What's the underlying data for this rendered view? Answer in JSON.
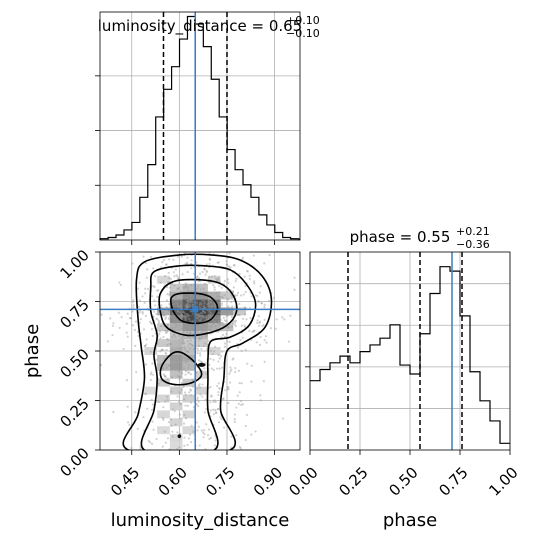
{
  "chart_data": [
    {
      "panel": "luminosity_distance-marginal",
      "type": "bar",
      "title_param": "luminosity_distance",
      "title_value": "0.65",
      "title_plus": "+0.10",
      "title_minus": "−0.10",
      "xlim": [
        0.35,
        0.98
      ],
      "x": [
        0.363,
        0.388,
        0.413,
        0.438,
        0.463,
        0.488,
        0.513,
        0.538,
        0.563,
        0.588,
        0.613,
        0.638,
        0.663,
        0.688,
        0.713,
        0.738,
        0.763,
        0.788,
        0.813,
        0.838,
        0.863,
        0.888,
        0.913,
        0.938,
        0.963
      ],
      "values": [
        1,
        2,
        4,
        8,
        14,
        34,
        60,
        98,
        120,
        138,
        160,
        178,
        172,
        154,
        128,
        98,
        72,
        56,
        44,
        34,
        20,
        12,
        6,
        2,
        1
      ],
      "quantiles": [
        0.55,
        0.65,
        0.75
      ],
      "truth": 0.65,
      "grid": true
    },
    {
      "panel": "phase-marginal",
      "type": "bar",
      "title_param": "phase",
      "title_value": "0.55",
      "title_plus": "+0.21",
      "title_minus": "−0.36",
      "xlim": [
        0.0,
        1.0
      ],
      "xticks": [
        "0.00",
        "0.25",
        "0.50",
        "0.75",
        "1.00"
      ],
      "xlabel": "phase",
      "x": [
        0.025,
        0.075,
        0.125,
        0.175,
        0.225,
        0.275,
        0.325,
        0.375,
        0.425,
        0.475,
        0.525,
        0.575,
        0.625,
        0.675,
        0.725,
        0.775,
        0.825,
        0.875,
        0.925,
        0.975
      ],
      "values": [
        31,
        36,
        39,
        42,
        39,
        44,
        47,
        50,
        56,
        38,
        34,
        52,
        70,
        82,
        80,
        60,
        35,
        22,
        13,
        3
      ],
      "quantiles": [
        0.19,
        0.55,
        0.76
      ],
      "truth": 0.71,
      "grid": true
    },
    {
      "panel": "joint-luminosity_distance-phase",
      "type": "scatter",
      "xlim": [
        0.35,
        0.98
      ],
      "ylim": [
        0.0,
        1.0
      ],
      "xticks": [
        "0.45",
        "0.60",
        "0.75",
        "0.90"
      ],
      "yticks": [
        "0.00",
        "0.25",
        "0.50",
        "0.75",
        "1.00"
      ],
      "xlabel": "luminosity_distance",
      "ylabel": "phase",
      "truth": [
        0.65,
        0.71
      ],
      "density_cells": [
        {
          "x": 0.63,
          "y": 0.7,
          "v": 1.0
        },
        {
          "x": 0.67,
          "y": 0.7,
          "v": 0.95
        },
        {
          "x": 0.63,
          "y": 0.66,
          "v": 0.9
        },
        {
          "x": 0.67,
          "y": 0.74,
          "v": 0.85
        },
        {
          "x": 0.71,
          "y": 0.7,
          "v": 0.8
        },
        {
          "x": 0.59,
          "y": 0.7,
          "v": 0.75
        },
        {
          "x": 0.63,
          "y": 0.74,
          "v": 0.8
        },
        {
          "x": 0.67,
          "y": 0.66,
          "v": 0.8
        },
        {
          "x": 0.59,
          "y": 0.74,
          "v": 0.6
        },
        {
          "x": 0.71,
          "y": 0.74,
          "v": 0.65
        },
        {
          "x": 0.71,
          "y": 0.66,
          "v": 0.6
        },
        {
          "x": 0.59,
          "y": 0.66,
          "v": 0.55
        },
        {
          "x": 0.63,
          "y": 0.78,
          "v": 0.55
        },
        {
          "x": 0.67,
          "y": 0.78,
          "v": 0.5
        },
        {
          "x": 0.63,
          "y": 0.62,
          "v": 0.5
        },
        {
          "x": 0.67,
          "y": 0.62,
          "v": 0.45
        },
        {
          "x": 0.75,
          "y": 0.7,
          "v": 0.45
        },
        {
          "x": 0.55,
          "y": 0.7,
          "v": 0.35
        },
        {
          "x": 0.59,
          "y": 0.78,
          "v": 0.35
        },
        {
          "x": 0.71,
          "y": 0.78,
          "v": 0.35
        },
        {
          "x": 0.59,
          "y": 0.62,
          "v": 0.35
        },
        {
          "x": 0.71,
          "y": 0.62,
          "v": 0.35
        },
        {
          "x": 0.63,
          "y": 0.58,
          "v": 0.3
        },
        {
          "x": 0.59,
          "y": 0.54,
          "v": 0.3
        },
        {
          "x": 0.59,
          "y": 0.46,
          "v": 0.45
        },
        {
          "x": 0.63,
          "y": 0.46,
          "v": 0.35
        },
        {
          "x": 0.59,
          "y": 0.42,
          "v": 0.45
        },
        {
          "x": 0.59,
          "y": 0.5,
          "v": 0.35
        },
        {
          "x": 0.63,
          "y": 0.42,
          "v": 0.3
        },
        {
          "x": 0.55,
          "y": 0.42,
          "v": 0.3
        },
        {
          "x": 0.55,
          "y": 0.46,
          "v": 0.25
        },
        {
          "x": 0.63,
          "y": 0.5,
          "v": 0.25
        },
        {
          "x": 0.59,
          "y": 0.38,
          "v": 0.25
        },
        {
          "x": 0.63,
          "y": 0.54,
          "v": 0.2
        },
        {
          "x": 0.55,
          "y": 0.54,
          "v": 0.2
        },
        {
          "x": 0.67,
          "y": 0.54,
          "v": 0.2
        },
        {
          "x": 0.55,
          "y": 0.62,
          "v": 0.2
        },
        {
          "x": 0.75,
          "y": 0.62,
          "v": 0.25
        },
        {
          "x": 0.75,
          "y": 0.78,
          "v": 0.2
        },
        {
          "x": 0.79,
          "y": 0.7,
          "v": 0.2
        },
        {
          "x": 0.63,
          "y": 0.82,
          "v": 0.3
        },
        {
          "x": 0.67,
          "y": 0.82,
          "v": 0.25
        },
        {
          "x": 0.59,
          "y": 0.82,
          "v": 0.2
        },
        {
          "x": 0.63,
          "y": 0.34,
          "v": 0.2
        },
        {
          "x": 0.59,
          "y": 0.3,
          "v": 0.18
        },
        {
          "x": 0.55,
          "y": 0.34,
          "v": 0.18
        },
        {
          "x": 0.63,
          "y": 0.26,
          "v": 0.16
        },
        {
          "x": 0.59,
          "y": 0.22,
          "v": 0.15
        },
        {
          "x": 0.55,
          "y": 0.26,
          "v": 0.14
        },
        {
          "x": 0.63,
          "y": 0.18,
          "v": 0.14
        },
        {
          "x": 0.59,
          "y": 0.14,
          "v": 0.14
        },
        {
          "x": 0.55,
          "y": 0.18,
          "v": 0.12
        },
        {
          "x": 0.63,
          "y": 0.1,
          "v": 0.12
        },
        {
          "x": 0.59,
          "y": 0.06,
          "v": 0.12
        },
        {
          "x": 0.55,
          "y": 0.1,
          "v": 0.1
        },
        {
          "x": 0.59,
          "y": 0.02,
          "v": 0.1
        },
        {
          "x": 0.67,
          "y": 0.38,
          "v": 0.15
        },
        {
          "x": 0.67,
          "y": 0.3,
          "v": 0.14
        },
        {
          "x": 0.51,
          "y": 0.3,
          "v": 0.1
        },
        {
          "x": 0.51,
          "y": 0.5,
          "v": 0.12
        },
        {
          "x": 0.71,
          "y": 0.5,
          "v": 0.12
        },
        {
          "x": 0.71,
          "y": 0.86,
          "v": 0.12
        },
        {
          "x": 0.55,
          "y": 0.86,
          "v": 0.12
        },
        {
          "x": 0.67,
          "y": 0.58,
          "v": 0.28
        },
        {
          "x": 0.59,
          "y": 0.58,
          "v": 0.22
        }
      ],
      "contours": [
        [
          [
            0.575,
            0.77
          ],
          [
            0.6,
            0.79
          ],
          [
            0.66,
            0.79
          ],
          [
            0.7,
            0.77
          ],
          [
            0.72,
            0.72
          ],
          [
            0.7,
            0.66
          ],
          [
            0.66,
            0.64
          ],
          [
            0.61,
            0.65
          ],
          [
            0.585,
            0.69
          ],
          [
            0.575,
            0.73
          ]
        ],
        [
          [
            0.54,
            0.79
          ],
          [
            0.58,
            0.85
          ],
          [
            0.66,
            0.86
          ],
          [
            0.73,
            0.84
          ],
          [
            0.77,
            0.78
          ],
          [
            0.78,
            0.7
          ],
          [
            0.75,
            0.63
          ],
          [
            0.69,
            0.59
          ],
          [
            0.62,
            0.58
          ],
          [
            0.56,
            0.62
          ],
          [
            0.54,
            0.7
          ]
        ],
        [
          [
            0.55,
            0.35
          ],
          [
            0.59,
            0.33
          ],
          [
            0.64,
            0.34
          ],
          [
            0.67,
            0.38
          ],
          [
            0.65,
            0.44
          ],
          [
            0.61,
            0.49
          ],
          [
            0.58,
            0.49
          ],
          [
            0.55,
            0.44
          ],
          [
            0.54,
            0.39
          ]
        ],
        [
          [
            0.51,
            0.82
          ],
          [
            0.52,
            0.9
          ],
          [
            0.6,
            0.93
          ],
          [
            0.68,
            0.93
          ],
          [
            0.76,
            0.91
          ],
          [
            0.81,
            0.84
          ],
          [
            0.84,
            0.74
          ],
          [
            0.82,
            0.63
          ],
          [
            0.76,
            0.57
          ],
          [
            0.7,
            0.55
          ],
          [
            0.69,
            0.46
          ],
          [
            0.69,
            0.36
          ],
          [
            0.69,
            0.2
          ],
          [
            0.71,
            0.0
          ],
          [
            0.49,
            0.0
          ],
          [
            0.52,
            0.2
          ],
          [
            0.53,
            0.36
          ],
          [
            0.52,
            0.48
          ],
          [
            0.53,
            0.58
          ],
          [
            0.51,
            0.7
          ]
        ],
        [
          [
            0.465,
            0.86
          ],
          [
            0.49,
            0.95
          ],
          [
            0.6,
            0.985
          ],
          [
            0.7,
            0.985
          ],
          [
            0.79,
            0.96
          ],
          [
            0.86,
            0.88
          ],
          [
            0.89,
            0.76
          ],
          [
            0.87,
            0.62
          ],
          [
            0.8,
            0.54
          ],
          [
            0.75,
            0.5
          ],
          [
            0.74,
            0.36
          ],
          [
            0.73,
            0.2
          ],
          [
            0.76,
            0.0
          ],
          [
            0.44,
            0.0
          ],
          [
            0.47,
            0.18
          ],
          [
            0.49,
            0.36
          ],
          [
            0.48,
            0.52
          ],
          [
            0.47,
            0.66
          ]
        ]
      ],
      "contour_fills": [
        "#e6e6e6",
        "#c2c2c2",
        "#9a9a9a",
        "#707070",
        "#303030"
      ]
    }
  ]
}
